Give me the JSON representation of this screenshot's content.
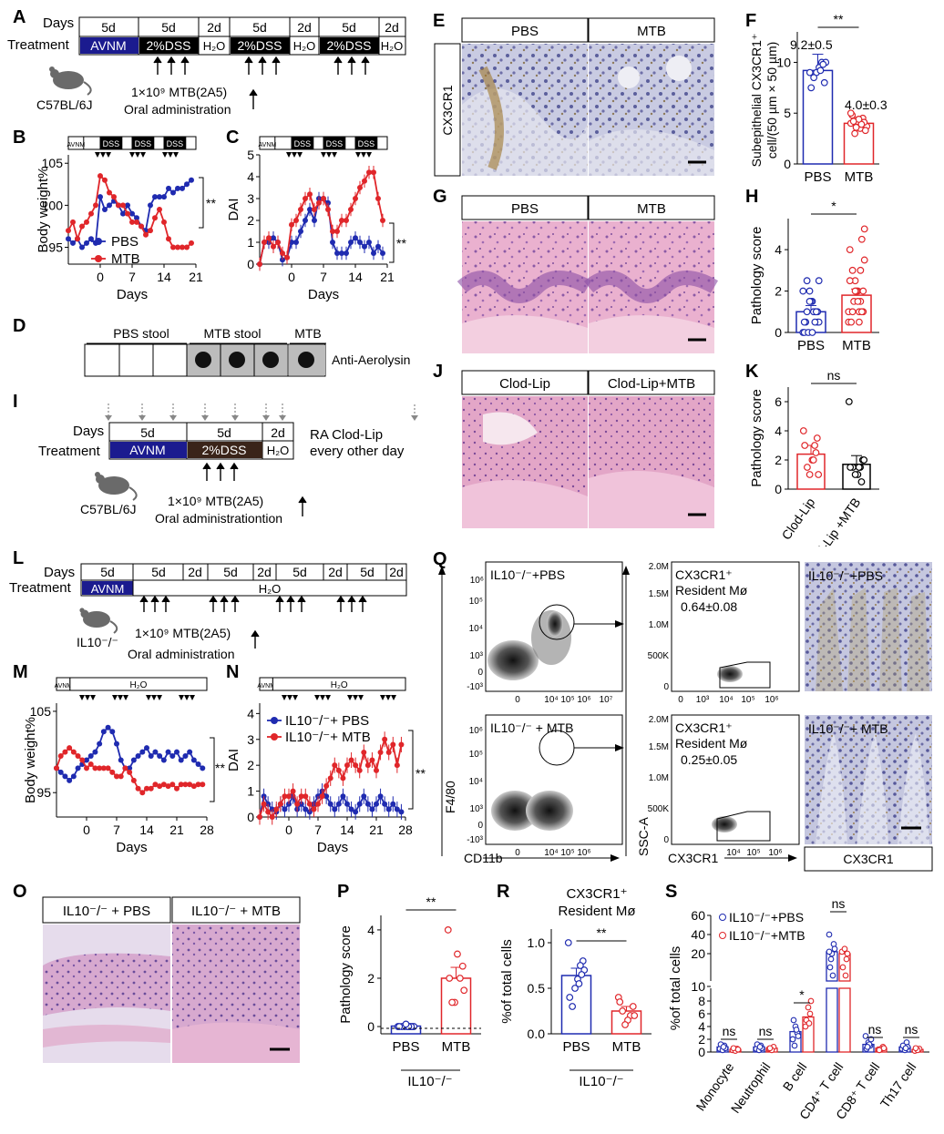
{
  "panels": {
    "A": "A",
    "B": "B",
    "C": "C",
    "D": "D",
    "E": "E",
    "F": "F",
    "G": "G",
    "H": "H",
    "I": "I",
    "J": "J",
    "K": "K",
    "L": "L",
    "M": "M",
    "N": "N",
    "O": "O",
    "P": "P",
    "Q": "Q",
    "R": "R",
    "S": "S"
  },
  "schemeA": {
    "days_label": "Days",
    "treatment_label": "Treatment",
    "cells": [
      "5d",
      "5d",
      "2d",
      "5d",
      "2d",
      "5d",
      "2d"
    ],
    "treat": [
      "AVNM",
      "2%DSS",
      "H₂O",
      "2%DSS",
      "H₂O",
      "2%DSS",
      "H₂O"
    ],
    "mouse": "C57BL/6J",
    "dose": "1×10⁹ MTB(2A5)",
    "oral": "Oral administration"
  },
  "panelB": {
    "ylabel": "Body weight%",
    "xlabel": "Days",
    "yticks": [
      "105",
      "100",
      "95"
    ],
    "xticks": [
      "0",
      "7",
      "14",
      "21"
    ],
    "legend": [
      "PBS",
      "MTB"
    ],
    "sig": "**",
    "top_bar": [
      "AVNM",
      "DSS",
      "DSS",
      "DSS"
    ]
  },
  "panelC": {
    "ylabel": "DAI",
    "xlabel": "Days",
    "yticks": [
      "0",
      "1",
      "2",
      "3",
      "4",
      "5"
    ],
    "xticks": [
      "0",
      "7",
      "14",
      "21"
    ],
    "sig": "**",
    "top_bar": [
      "AVNM",
      "DSS",
      "DSS",
      "DSS"
    ]
  },
  "panelD": {
    "groups": [
      "PBS stool",
      "MTB stool",
      "MTB"
    ],
    "label": "Anti-Aerolysin"
  },
  "panelE": {
    "groups": [
      "PBS",
      "MTB"
    ],
    "stain": "CX3CR1"
  },
  "panelF": {
    "ylabel": "Subepithelial CX3CR1⁺ cell/(50 µm × 50 µm)",
    "yticks": [
      "0",
      "5",
      "10"
    ],
    "groups": [
      "PBS",
      "MTB"
    ],
    "means": [
      "9.2±0.5",
      "4.0±0.3"
    ],
    "sig": "**"
  },
  "panelG": {
    "groups": [
      "PBS",
      "MTB"
    ]
  },
  "panelH": {
    "ylabel": "Pathology score",
    "yticks": [
      "0",
      "2",
      "4"
    ],
    "groups": [
      "PBS",
      "MTB"
    ],
    "sig": "*"
  },
  "schemeI": {
    "days_label": "Days",
    "treatment_label": "Treatment",
    "cells": [
      "5d",
      "5d",
      "2d"
    ],
    "treat": [
      "AVNM",
      "2%DSS",
      "H₂O"
    ],
    "ra_label": "RA Clod-Lip",
    "ra_label2": "every other day",
    "mouse": "C57BL/6J",
    "dose": "1×10⁹ MTB(2A5)",
    "oral": "Oral administrationtion"
  },
  "panelJ": {
    "groups": [
      "Clod-Lip",
      "Clod-Lip+MTB"
    ]
  },
  "panelK": {
    "ylabel": "Pathology score",
    "yticks": [
      "0",
      "2",
      "4",
      "6"
    ],
    "groups": [
      "Clod-Lip",
      "Clod-Lip +MTB"
    ],
    "sig": "ns"
  },
  "schemeL": {
    "days_label": "Days",
    "treatment_label": "Treatment",
    "cells": [
      "5d",
      "5d",
      "2d",
      "5d",
      "2d",
      "5d",
      "2d",
      "5d",
      "2d"
    ],
    "treat_avnm": "AVNM",
    "treat_h2o": "H₂O",
    "mouse": "IL10⁻/⁻",
    "dose": "1×10⁹ MTB(2A5)",
    "oral": "Oral administration"
  },
  "panelM": {
    "ylabel": "Body weight%",
    "xlabel": "Days",
    "yticks": [
      "105",
      "95"
    ],
    "xticks": [
      "0",
      "7",
      "14",
      "21",
      "28"
    ],
    "sig": "**",
    "top": [
      "AVNM",
      "H₂O"
    ]
  },
  "panelN": {
    "ylabel": "DAI",
    "xlabel": "Days",
    "yticks": [
      "0",
      "1",
      "2",
      "3",
      "4"
    ],
    "xticks": [
      "0",
      "7",
      "14",
      "21",
      "28"
    ],
    "legend": [
      "IL10⁻/⁻+ PBS",
      "IL10⁻/⁻+ MTB"
    ],
    "sig": "**",
    "top": [
      "AVNM",
      "H₂O"
    ]
  },
  "panelO": {
    "groups": [
      "IL10⁻/⁻ + PBS",
      "IL10⁻/⁻ + MTB"
    ]
  },
  "panelP": {
    "ylabel": "Pathology score",
    "yticks": [
      "0",
      "2",
      "4"
    ],
    "groups": [
      "PBS",
      "MTB"
    ],
    "sub": "IL10⁻/⁻",
    "sig": "**"
  },
  "panelQ": {
    "top_title": "IL10⁻/⁻+PBS",
    "bottom_title": "IL10⁻/⁻ + MTB",
    "res_title": "CX3CR1⁺",
    "res_sub": "Resident Mø",
    "res_top_val": "0.64±0.08",
    "res_bottom_val": "0.25±0.05",
    "f480": "F4/80",
    "cd11b": "CD11b",
    "ssca": "SSC-A",
    "cx3cr1": "CX3CR1",
    "y_ticks_left": [
      "10⁶",
      "10⁵",
      "10⁴",
      "10³",
      "0",
      "-10³"
    ],
    "x_ticks_left": [
      "0",
      "10⁴",
      "10⁵",
      "10⁶",
      "10⁷"
    ],
    "y_ticks_mid": [
      "2.0M",
      "1.5M",
      "1.0M",
      "500K",
      "0"
    ],
    "x_ticks_mid": [
      "0",
      "10³",
      "10⁴",
      "10⁵",
      "10⁶"
    ],
    "img_top": "IL10⁻/⁻+PBS",
    "img_bottom": "IL10⁻/⁻+ MTB",
    "img_label": "CX3CR1"
  },
  "panelR": {
    "title1": "CX3CR1⁺",
    "title2": "Resident Mø",
    "ylabel": "%of total cells",
    "yticks": [
      "0.0",
      "0.5",
      "1.0"
    ],
    "groups": [
      "PBS",
      "MTB"
    ],
    "sub": "IL10⁻/⁻",
    "sig": "**"
  },
  "panelS": {
    "ylabel": "%of total cells",
    "yticks": [
      "0",
      "2",
      "4",
      "6",
      "8",
      "10",
      "20",
      "40",
      "60"
    ],
    "legend": [
      "IL10⁻/⁻+PBS",
      "IL10⁻/⁻+MTB"
    ],
    "cats": [
      "Monocyte",
      "Neutrophil",
      "B cell",
      "CD4⁺ T cell",
      "CD8⁺ T cell",
      "Th17 cell"
    ],
    "sigs": [
      "ns",
      "ns",
      "*",
      "ns",
      "ns",
      "ns"
    ]
  },
  "colors": {
    "pbs": "#1f2bb0",
    "mtb": "#e0262a",
    "avnm": "#1b1b8f",
    "dss": "#000000",
    "he": "#e8a6c8"
  }
}
